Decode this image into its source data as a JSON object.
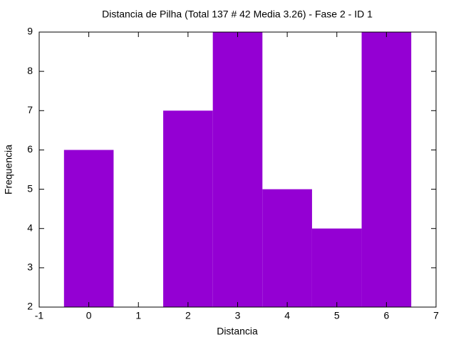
{
  "chart_data": {
    "type": "bar",
    "title": "Distancia de Pilha (Total 137 # 42 Media 3.26) - Fase  2 - ID 1",
    "xlabel": "Distancia",
    "ylabel": "Frequencia",
    "x": [
      0,
      1,
      2,
      3,
      4,
      5,
      6
    ],
    "values": [
      6,
      2,
      7,
      9,
      5,
      4,
      9
    ],
    "color": "#9400d3",
    "bar_width": 1,
    "xlim": [
      -1,
      7
    ],
    "xticks": [
      -1,
      0,
      1,
      2,
      3,
      4,
      5,
      6,
      7
    ],
    "ylim": [
      2,
      9
    ],
    "yticks": [
      2,
      3,
      4,
      5,
      6,
      7,
      8,
      9
    ]
  }
}
